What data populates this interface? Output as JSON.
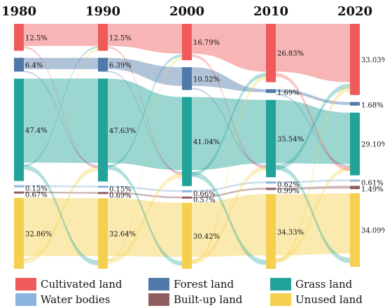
{
  "chart_data": {
    "type": "sankey",
    "years": [
      "1980",
      "1990",
      "2000",
      "2010",
      "2020"
    ],
    "categories": [
      "Cultivated land",
      "Water bodies",
      "Forest land",
      "Built-up land",
      "Grass land",
      "Unused land"
    ],
    "colors": {
      "Cultivated land": "#f05a5a",
      "Forest land": "#4f79a8",
      "Grass land": "#22a39a",
      "Water bodies": "#8ab4dc",
      "Built-up land": "#8e5d5d",
      "Unused land": "#f5d04e"
    },
    "node_order": [
      "Cultivated land",
      "Forest land",
      "Grass land",
      "Water bodies",
      "Built-up land",
      "Unused land"
    ],
    "values": {
      "1980": {
        "Cultivated land": 12.5,
        "Forest land": 6.4,
        "Grass land": 47.4,
        "Water bodies": 0.15,
        "Built-up land": 0.67,
        "Unused land": 32.86
      },
      "1990": {
        "Cultivated land": 12.5,
        "Forest land": 6.39,
        "Grass land": 47.63,
        "Water bodies": 0.15,
        "Built-up land": 0.69,
        "Unused land": 32.64
      },
      "2000": {
        "Cultivated land": 16.79,
        "Forest land": 10.52,
        "Grass land": 41.04,
        "Water bodies": 0.66,
        "Built-up land": 0.57,
        "Unused land": 30.42
      },
      "2010": {
        "Cultivated land": 26.83,
        "Forest land": 1.69,
        "Grass land": 35.54,
        "Water bodies": 0.62,
        "Built-up land": 0.99,
        "Unused land": 34.33
      },
      "2020": {
        "Cultivated land": 33.03,
        "Forest land": 1.68,
        "Grass land": 29.1,
        "Water bodies": 0.61,
        "Built-up land": 1.49,
        "Unused land": 34.09
      }
    },
    "labels": {
      "1980": {
        "Cultivated land": "12.5%",
        "Forest land": "6.4%",
        "Grass land": "47.4%",
        "Water bodies": "0.15%",
        "Built-up land": "0.67%",
        "Unused land": "32.86%"
      },
      "1990": {
        "Cultivated land": "12.5%",
        "Forest land": "6.39%",
        "Grass land": "47.63%",
        "Water bodies": "0.15%",
        "Built-up land": "0.69%",
        "Unused land": "32.64%"
      },
      "2000": {
        "Cultivated land": "16.79%",
        "Forest land": "10.52%",
        "Grass land": "41.04%",
        "Water bodies": "0.66%",
        "Built-up land": "0.57%",
        "Unused land": "30.42%"
      },
      "2010": {
        "Cultivated land": "26.83%",
        "Forest land": "1.69%",
        "Grass land": "35.54%",
        "Water bodies": "0.62%",
        "Built-up land": "0.99%",
        "Unused land": "34.33%"
      },
      "2020": {
        "Cultivated land": "33.03%",
        "Forest land": "1.68%",
        "Grass land": "29.10%",
        "Water bodies": "0.61%",
        "Built-up land": "1.49%",
        "Unused land": "34.09%"
      }
    },
    "legend": [
      "Cultivated land",
      "Forest land",
      "Grass land",
      "Water bodies",
      "Built-up land",
      "Unused land"
    ],
    "legend_position": "bottom"
  }
}
